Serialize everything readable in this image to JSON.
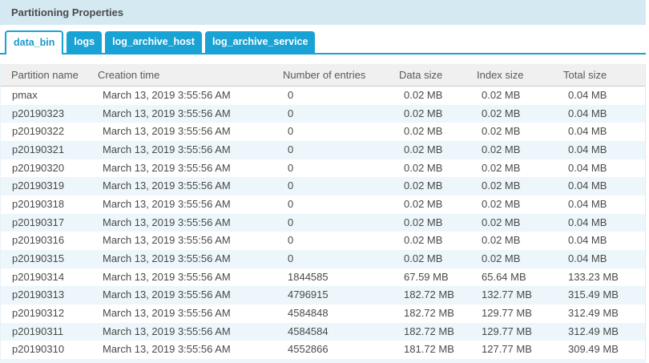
{
  "panel": {
    "title": "Partitioning Properties"
  },
  "tabs": [
    {
      "label": "data_bin",
      "active": true
    },
    {
      "label": "logs",
      "active": false
    },
    {
      "label": "log_archive_host",
      "active": false
    },
    {
      "label": "log_archive_service",
      "active": false
    }
  ],
  "table": {
    "columns": [
      "Partition name",
      "Creation time",
      "Number of entries",
      "Data size",
      "Index size",
      "Total size"
    ],
    "rows": [
      [
        "pmax",
        "March 13, 2019 3:55:56 AM",
        "0",
        "0.02 MB",
        "0.02 MB",
        "0.04 MB"
      ],
      [
        "p20190323",
        "March 13, 2019 3:55:56 AM",
        "0",
        "0.02 MB",
        "0.02 MB",
        "0.04 MB"
      ],
      [
        "p20190322",
        "March 13, 2019 3:55:56 AM",
        "0",
        "0.02 MB",
        "0.02 MB",
        "0.04 MB"
      ],
      [
        "p20190321",
        "March 13, 2019 3:55:56 AM",
        "0",
        "0.02 MB",
        "0.02 MB",
        "0.04 MB"
      ],
      [
        "p20190320",
        "March 13, 2019 3:55:56 AM",
        "0",
        "0.02 MB",
        "0.02 MB",
        "0.04 MB"
      ],
      [
        "p20190319",
        "March 13, 2019 3:55:56 AM",
        "0",
        "0.02 MB",
        "0.02 MB",
        "0.04 MB"
      ],
      [
        "p20190318",
        "March 13, 2019 3:55:56 AM",
        "0",
        "0.02 MB",
        "0.02 MB",
        "0.04 MB"
      ],
      [
        "p20190317",
        "March 13, 2019 3:55:56 AM",
        "0",
        "0.02 MB",
        "0.02 MB",
        "0.04 MB"
      ],
      [
        "p20190316",
        "March 13, 2019 3:55:56 AM",
        "0",
        "0.02 MB",
        "0.02 MB",
        "0.04 MB"
      ],
      [
        "p20190315",
        "March 13, 2019 3:55:56 AM",
        "0",
        "0.02 MB",
        "0.02 MB",
        "0.04 MB"
      ],
      [
        "p20190314",
        "March 13, 2019 3:55:56 AM",
        "1844585",
        "67.59 MB",
        "65.64 MB",
        "133.23 MB"
      ],
      [
        "p20190313",
        "March 13, 2019 3:55:56 AM",
        "4796915",
        "182.72 MB",
        "132.77 MB",
        "315.49 MB"
      ],
      [
        "p20190312",
        "March 13, 2019 3:55:56 AM",
        "4584848",
        "182.72 MB",
        "129.77 MB",
        "312.49 MB"
      ],
      [
        "p20190311",
        "March 13, 2019 3:55:56 AM",
        "4584584",
        "182.72 MB",
        "129.77 MB",
        "312.49 MB"
      ],
      [
        "p20190310",
        "March 13, 2019 3:55:56 AM",
        "4552866",
        "181.72 MB",
        "127.77 MB",
        "309.49 MB"
      ]
    ]
  },
  "colors": {
    "accent": "#19a3d5",
    "titlebar_bg": "#d4e9f2",
    "title_text": "#4a4a4a",
    "active_tab_text": "#1899cc",
    "table_header_bg": "#f1f0f0",
    "header_text": "#595959",
    "header_border": "#c9c9c9",
    "row_alt_bg": "#ecf6fb",
    "text": "#4a4a4a"
  }
}
